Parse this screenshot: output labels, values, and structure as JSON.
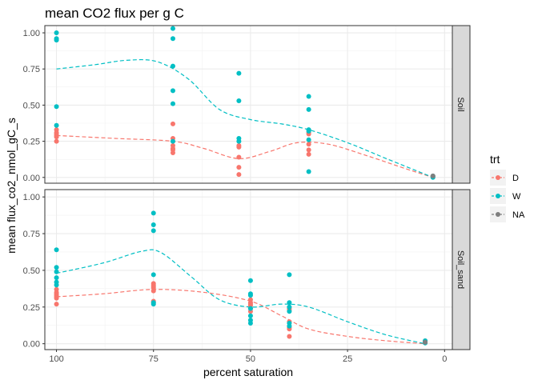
{
  "chart_data": {
    "type": "scatter",
    "title": "mean CO2 flux per g C",
    "xlabel": "percent saturation",
    "ylabel": "mean flux_co2_nmol_gC_s",
    "x_reversed": true,
    "xlim": [
      103,
      -2
    ],
    "ylim": [
      -0.04,
      1.05
    ],
    "x_ticks": [
      100,
      75,
      50,
      25,
      0
    ],
    "y_ticks": [
      0.0,
      0.25,
      0.5,
      0.75,
      1.0
    ],
    "y_tick_labels": [
      "0.00",
      "0.25",
      "0.50",
      "0.75",
      "1.00"
    ],
    "grid": true,
    "legend": {
      "title": "trt",
      "placement": "right",
      "entries": [
        {
          "label": "D",
          "color": "#F8766D"
        },
        {
          "label": "W",
          "color": "#00BFC4"
        },
        {
          "label": "NA",
          "color": "#7F7F7F"
        }
      ]
    },
    "facets": [
      {
        "label": "Soil",
        "series": [
          {
            "name": "D",
            "color": "#F8766D",
            "points": [
              [
                100,
                0.33
              ],
              [
                100,
                0.31
              ],
              [
                100,
                0.3
              ],
              [
                100,
                0.29
              ],
              [
                100,
                0.28
              ],
              [
                100,
                0.25
              ],
              [
                70,
                0.37
              ],
              [
                70,
                0.27
              ],
              [
                70,
                0.22
              ],
              [
                70,
                0.2
              ],
              [
                70,
                0.19
              ],
              [
                70,
                0.17
              ],
              [
                53,
                0.22
              ],
              [
                53,
                0.21
              ],
              [
                53,
                0.14
              ],
              [
                53,
                0.07
              ],
              [
                53,
                0.02
              ],
              [
                35,
                0.31
              ],
              [
                35,
                0.3
              ],
              [
                35,
                0.23
              ],
              [
                35,
                0.19
              ],
              [
                35,
                0.16
              ],
              [
                3,
                0.01
              ],
              [
                3,
                0.005
              ]
            ],
            "smooth": [
              [
                100,
                0.29
              ],
              [
                85,
                0.27
              ],
              [
                70,
                0.25
              ],
              [
                62,
                0.2
              ],
              [
                53,
                0.13
              ],
              [
                45,
                0.18
              ],
              [
                38,
                0.24
              ],
              [
                30,
                0.23
              ],
              [
                20,
                0.15
              ],
              [
                10,
                0.06
              ],
              [
                3,
                0.0
              ]
            ]
          },
          {
            "name": "W",
            "color": "#00BFC4",
            "points": [
              [
                100,
                1.0
              ],
              [
                100,
                0.96
              ],
              [
                100,
                0.95
              ],
              [
                100,
                0.49
              ],
              [
                100,
                0.36
              ],
              [
                70,
                1.03
              ],
              [
                70,
                0.96
              ],
              [
                70,
                0.77
              ],
              [
                70,
                0.6
              ],
              [
                70,
                0.51
              ],
              [
                70,
                0.25
              ],
              [
                53,
                0.72
              ],
              [
                53,
                0.53
              ],
              [
                53,
                0.27
              ],
              [
                53,
                0.25
              ],
              [
                35,
                0.56
              ],
              [
                35,
                0.47
              ],
              [
                35,
                0.33
              ],
              [
                35,
                0.32
              ],
              [
                35,
                0.26
              ],
              [
                35,
                0.04
              ],
              [
                3,
                0.01
              ],
              [
                3,
                0.0
              ]
            ],
            "smooth": [
              [
                100,
                0.75
              ],
              [
                90,
                0.78
              ],
              [
                82,
                0.81
              ],
              [
                74,
                0.8
              ],
              [
                66,
                0.68
              ],
              [
                58,
                0.47
              ],
              [
                50,
                0.4
              ],
              [
                42,
                0.37
              ],
              [
                35,
                0.33
              ],
              [
                25,
                0.24
              ],
              [
                15,
                0.13
              ],
              [
                3,
                0.0
              ]
            ]
          },
          {
            "name": "NA",
            "color": "#7F7F7F",
            "points": [
              [
                3,
                0.01
              ]
            ],
            "smooth": []
          }
        ]
      },
      {
        "label": "Soil_sand",
        "series": [
          {
            "name": "D",
            "color": "#F8766D",
            "points": [
              [
                100,
                0.37
              ],
              [
                100,
                0.35
              ],
              [
                100,
                0.34
              ],
              [
                100,
                0.33
              ],
              [
                100,
                0.32
              ],
              [
                100,
                0.31
              ],
              [
                100,
                0.27
              ],
              [
                75,
                0.41
              ],
              [
                75,
                0.4
              ],
              [
                75,
                0.39
              ],
              [
                75,
                0.38
              ],
              [
                75,
                0.36
              ],
              [
                75,
                0.29
              ],
              [
                75,
                0.28
              ],
              [
                50,
                0.3
              ],
              [
                50,
                0.28
              ],
              [
                50,
                0.27
              ],
              [
                50,
                0.26
              ],
              [
                50,
                0.24
              ],
              [
                50,
                0.22
              ],
              [
                40,
                0.24
              ],
              [
                40,
                0.23
              ],
              [
                40,
                0.15
              ],
              [
                40,
                0.11
              ],
              [
                40,
                0.1
              ],
              [
                40,
                0.05
              ],
              [
                5,
                0.02
              ],
              [
                5,
                0.01
              ]
            ],
            "smooth": [
              [
                100,
                0.32
              ],
              [
                88,
                0.34
              ],
              [
                75,
                0.37
              ],
              [
                62,
                0.35
              ],
              [
                50,
                0.29
              ],
              [
                42,
                0.19
              ],
              [
                35,
                0.1
              ],
              [
                25,
                0.05
              ],
              [
                15,
                0.02
              ],
              [
                5,
                0.0
              ]
            ]
          },
          {
            "name": "W",
            "color": "#00BFC4",
            "points": [
              [
                100,
                0.64
              ],
              [
                100,
                0.52
              ],
              [
                100,
                0.49
              ],
              [
                100,
                0.45
              ],
              [
                100,
                0.42
              ],
              [
                100,
                0.4
              ],
              [
                75,
                0.89
              ],
              [
                75,
                0.81
              ],
              [
                75,
                0.77
              ],
              [
                75,
                0.47
              ],
              [
                75,
                0.28
              ],
              [
                75,
                0.27
              ],
              [
                50,
                0.43
              ],
              [
                50,
                0.34
              ],
              [
                50,
                0.33
              ],
              [
                50,
                0.24
              ],
              [
                50,
                0.19
              ],
              [
                50,
                0.16
              ],
              [
                50,
                0.14
              ],
              [
                40,
                0.47
              ],
              [
                40,
                0.28
              ],
              [
                40,
                0.25
              ],
              [
                40,
                0.22
              ],
              [
                40,
                0.14
              ],
              [
                40,
                0.12
              ],
              [
                5,
                0.02
              ],
              [
                5,
                0.005
              ]
            ],
            "smooth": [
              [
                100,
                0.48
              ],
              [
                88,
                0.55
              ],
              [
                78,
                0.63
              ],
              [
                73,
                0.62
              ],
              [
                65,
                0.45
              ],
              [
                58,
                0.3
              ],
              [
                50,
                0.25
              ],
              [
                42,
                0.27
              ],
              [
                35,
                0.25
              ],
              [
                25,
                0.15
              ],
              [
                15,
                0.06
              ],
              [
                5,
                0.0
              ]
            ]
          },
          {
            "name": "NA",
            "color": "#7F7F7F",
            "points": [
              [
                5,
                0.01
              ]
            ],
            "smooth": []
          }
        ]
      }
    ]
  }
}
